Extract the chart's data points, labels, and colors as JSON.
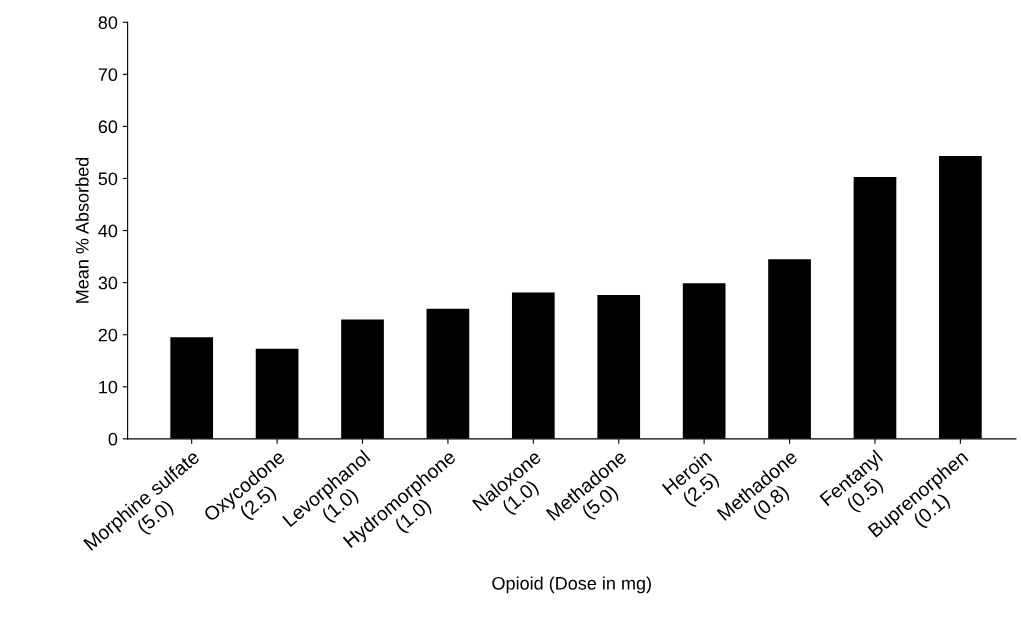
{
  "chart_data": {
    "type": "bar",
    "xlabel": "Opioid (Dose in mg)",
    "ylabel": "Mean % Absorbed",
    "categories": [
      "Morphine sulfate\n(5.0)",
      "Oxycodone\n(2.5)",
      "Levorphanol\n(1.0)",
      "Hydromorphone\n(1.0)",
      "Naloxone\n(1.0)",
      "Methadone\n(5.0)",
      "Heroin\n(2.5)",
      "Methadone\n(0.8)",
      "Fentanyl\n(0.5)",
      "Buprenorphen\n(0.1)"
    ],
    "values": [
      19.5,
      17.3,
      22.9,
      25.0,
      28.1,
      27.6,
      29.9,
      34.5,
      50.3,
      54.3
    ],
    "color": "#000000",
    "ylim": [
      0,
      80
    ],
    "yticks": [
      0,
      10,
      20,
      30,
      40,
      50,
      60,
      70,
      80
    ],
    "grid": false
  }
}
